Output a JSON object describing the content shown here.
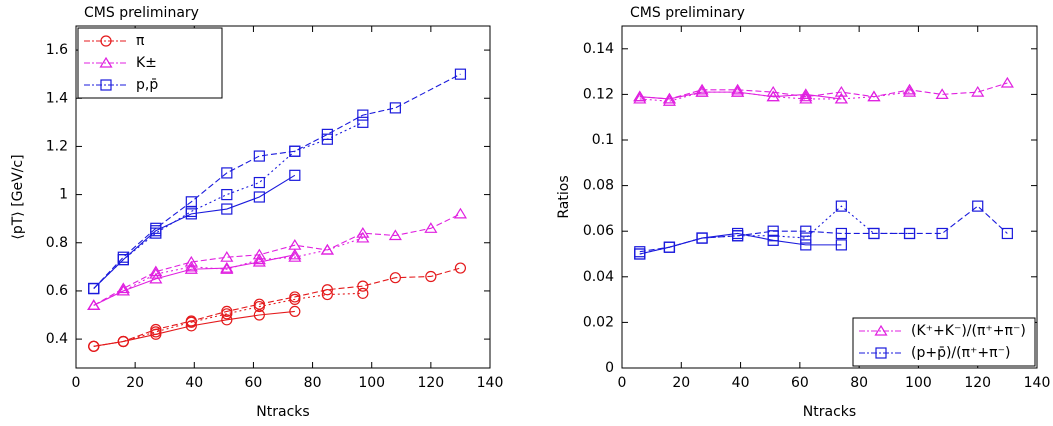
{
  "chart_data": [
    {
      "type": "line",
      "title": "CMS preliminary",
      "xlabel": "Ntracks",
      "ylabel": "⟨pT⟩ [GeV/c]",
      "xlim": [
        0,
        140
      ],
      "xticks": [
        0,
        20,
        40,
        60,
        80,
        100,
        120,
        140
      ],
      "ylim": [
        0.28,
        1.7
      ],
      "yticks": [
        0.4,
        0.6,
        0.8,
        1,
        1.2,
        1.4,
        1.6
      ],
      "legend": "upper left",
      "series": [
        {
          "name": "π",
          "color": "#e41a1c",
          "marker": "circle",
          "dash": "solid",
          "x": [
            6,
            16,
            27,
            39,
            51,
            62,
            74
          ],
          "values": [
            0.37,
            0.39,
            0.42,
            0.455,
            0.48,
            0.5,
            0.515
          ]
        },
        {
          "color": "#e41a1c",
          "marker": "circle",
          "dash": "dashed",
          "x": [
            6,
            16,
            27,
            39,
            51,
            62,
            74,
            85,
            97,
            108,
            120,
            130
          ],
          "values": [
            0.37,
            0.39,
            0.44,
            0.475,
            0.515,
            0.545,
            0.575,
            0.605,
            0.62,
            0.655,
            0.66,
            0.695
          ]
        },
        {
          "color": "#e41a1c",
          "marker": "circle",
          "dash": "dotted",
          "x": [
            6,
            16,
            27,
            39,
            51,
            62,
            74,
            85,
            97
          ],
          "values": [
            0.37,
            0.39,
            0.43,
            0.47,
            0.505,
            0.535,
            0.565,
            0.585,
            0.59
          ]
        },
        {
          "name": "K±",
          "color": "#e020e0",
          "marker": "triangle",
          "dash": "solid",
          "x": [
            6,
            16,
            27,
            39,
            51,
            62,
            74
          ],
          "values": [
            0.54,
            0.6,
            0.65,
            0.69,
            0.695,
            0.72,
            0.75
          ]
        },
        {
          "color": "#e020e0",
          "marker": "triangle",
          "dash": "dashed",
          "x": [
            6,
            16,
            27,
            39,
            51,
            62,
            74,
            85,
            97,
            108,
            120,
            130
          ],
          "values": [
            0.54,
            0.61,
            0.68,
            0.72,
            0.74,
            0.75,
            0.79,
            0.77,
            0.84,
            0.83,
            0.86,
            0.92
          ]
        },
        {
          "color": "#e020e0",
          "marker": "triangle",
          "dash": "dotted",
          "x": [
            6,
            16,
            27,
            39,
            51,
            62,
            74,
            85,
            97
          ],
          "values": [
            0.54,
            0.6,
            0.67,
            0.7,
            0.69,
            0.73,
            0.74,
            0.77,
            0.82
          ]
        },
        {
          "name": "p,p̄",
          "color": "#1a1adc",
          "marker": "square",
          "dash": "solid",
          "x": [
            6,
            16,
            27,
            39,
            51,
            62,
            74
          ],
          "values": [
            0.61,
            0.73,
            0.85,
            0.92,
            0.94,
            0.99,
            1.08
          ]
        },
        {
          "color": "#1a1adc",
          "marker": "square",
          "dash": "dashed",
          "x": [
            6,
            16,
            27,
            39,
            51,
            62,
            74,
            85,
            97,
            108,
            130
          ],
          "values": [
            0.61,
            0.74,
            0.86,
            0.97,
            1.09,
            1.16,
            1.18,
            1.25,
            1.33,
            1.36,
            1.5
          ]
        },
        {
          "color": "#1a1adc",
          "marker": "square",
          "dash": "dotted",
          "x": [
            6,
            16,
            27,
            39,
            51,
            62,
            74,
            85,
            97
          ],
          "values": [
            0.61,
            0.73,
            0.84,
            0.93,
            1.0,
            1.05,
            1.18,
            1.23,
            1.3
          ]
        }
      ]
    },
    {
      "type": "line",
      "title": "CMS preliminary",
      "xlabel": "Ntracks",
      "ylabel": "Ratios",
      "xlim": [
        0,
        140
      ],
      "xticks": [
        0,
        20,
        40,
        60,
        80,
        100,
        120,
        140
      ],
      "ylim": [
        0,
        0.15
      ],
      "yticks": [
        0,
        0.02,
        0.04,
        0.06,
        0.08,
        0.1,
        0.12,
        0.14
      ],
      "legend": "lower right",
      "series": [
        {
          "name": "(K⁺+K⁻)/(π⁺+π⁻)",
          "color": "#e020e0",
          "marker": "triangle",
          "dash": "solid",
          "x": [
            6,
            16,
            27,
            39,
            51,
            62,
            74
          ],
          "values": [
            0.119,
            0.118,
            0.121,
            0.121,
            0.119,
            0.12,
            0.118
          ]
        },
        {
          "color": "#e020e0",
          "marker": "triangle",
          "dash": "dashed",
          "x": [
            6,
            16,
            27,
            39,
            51,
            62,
            74,
            85,
            97,
            108,
            120,
            130
          ],
          "values": [
            0.119,
            0.118,
            0.122,
            0.122,
            0.121,
            0.119,
            0.121,
            0.119,
            0.122,
            0.12,
            0.121,
            0.125
          ]
        },
        {
          "color": "#e020e0",
          "marker": "triangle",
          "dash": "dotted",
          "x": [
            6,
            16,
            27,
            39,
            51,
            62,
            74,
            85,
            97
          ],
          "values": [
            0.118,
            0.117,
            0.121,
            0.121,
            0.119,
            0.118,
            0.118,
            0.119,
            0.121
          ]
        },
        {
          "name": "(p+p̄)/(π⁺+π⁻)",
          "color": "#1a1adc",
          "marker": "square",
          "dash": "solid",
          "x": [
            6,
            16,
            27,
            39,
            51,
            62,
            74
          ],
          "values": [
            0.05,
            0.053,
            0.057,
            0.059,
            0.056,
            0.054,
            0.054
          ]
        },
        {
          "color": "#1a1adc",
          "marker": "square",
          "dash": "dashed",
          "x": [
            6,
            16,
            27,
            39,
            51,
            62,
            74,
            85,
            97,
            108,
            120,
            130
          ],
          "values": [
            0.051,
            0.053,
            0.057,
            0.058,
            0.06,
            0.06,
            0.059,
            0.059,
            0.059,
            0.059,
            0.071,
            0.059
          ]
        },
        {
          "color": "#1a1adc",
          "marker": "square",
          "dash": "dotted",
          "x": [
            6,
            16,
            27,
            39,
            51,
            62,
            74,
            85,
            97
          ],
          "values": [
            0.05,
            0.053,
            0.057,
            0.058,
            0.058,
            0.057,
            0.071,
            0.059,
            0.059
          ]
        }
      ]
    }
  ]
}
